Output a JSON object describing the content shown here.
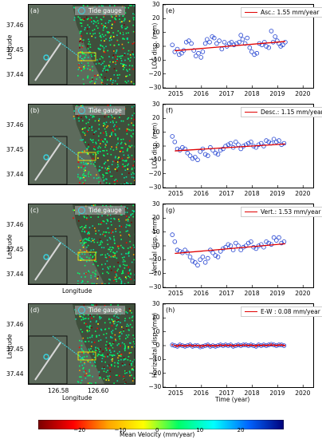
{
  "maps": {
    "panels": [
      {
        "letter": "(a)",
        "legend": "Tide gauge"
      },
      {
        "letter": "(b)",
        "legend": "Tide gauge"
      },
      {
        "letter": "(c)",
        "legend": "Tide gauge"
      },
      {
        "letter": "(d)",
        "legend": "Tide gauge"
      }
    ],
    "lat_ticks": [
      "37.46",
      "37.45",
      "37.44"
    ],
    "lon_ticks": [
      "126.58",
      "126.60"
    ],
    "ylabel": "Latitude",
    "xlabel": "Longitude"
  },
  "colorbar": {
    "label": "Mean Velocity (mm/year)",
    "ticks": [
      "−20",
      "−10",
      "0",
      "10",
      "20"
    ],
    "range": [
      -30,
      30
    ],
    "colors": [
      "#7a0000",
      "#ff0000",
      "#ffa500",
      "#ffff00",
      "#00ff66",
      "#00ffff",
      "#0064ff",
      "#00007a"
    ]
  },
  "chart_data": [
    {
      "type": "scatter",
      "panel": "(e)",
      "ylabel": "LOS disp. (mm)",
      "legend": "Asc.: 1.55 mm/year",
      "trend": {
        "x": [
          2014.95,
          2019.3
        ],
        "y": [
          -3.2,
          3.5
        ]
      },
      "x": [
        2014.85,
        2014.95,
        2015.05,
        2015.12,
        2015.22,
        2015.3,
        2015.4,
        2015.5,
        2015.6,
        2015.7,
        2015.78,
        2015.88,
        2015.98,
        2016.05,
        2016.15,
        2016.22,
        2016.32,
        2016.42,
        2016.5,
        2016.6,
        2016.7,
        2016.8,
        2016.9,
        2017.0,
        2017.1,
        2017.18,
        2017.28,
        2017.38,
        2017.48,
        2017.55,
        2017.62,
        2017.72,
        2017.8,
        2017.9,
        2017.98,
        2018.08,
        2018.18,
        2018.28,
        2018.38,
        2018.48,
        2018.55,
        2018.65,
        2018.75,
        2018.82,
        2018.9,
        2018.98,
        2019.05,
        2019.12,
        2019.2,
        2019.3
      ],
      "y": [
        1,
        -4,
        -2,
        -6,
        -5,
        -3,
        3,
        4,
        2,
        -3,
        -7,
        -5,
        -8,
        -4,
        2,
        5,
        3,
        7,
        6,
        2,
        4,
        -2,
        3,
        0,
        2,
        3,
        1,
        2,
        3,
        8,
        5,
        2,
        6,
        -1,
        -4,
        -6,
        -5,
        2,
        1,
        3,
        0,
        -1,
        11,
        3,
        7,
        4,
        2,
        0,
        1,
        3
      ],
      "xlim": [
        2014.5,
        2020.4
      ],
      "ylim": [
        -30,
        30
      ],
      "xticks": [
        2015,
        2016,
        2017,
        2018,
        2019,
        2020
      ],
      "yticks": [
        30,
        20,
        10,
        0,
        -10,
        -20,
        -30
      ]
    },
    {
      "type": "scatter",
      "panel": "(f)",
      "ylabel": "LOS disp. (mm)",
      "legend": "Desc.: 1.15 mm/year",
      "trend": {
        "x": [
          2014.95,
          2019.3
        ],
        "y": [
          -3.5,
          1.5
        ]
      },
      "x": [
        2014.85,
        2014.95,
        2015.05,
        2015.15,
        2015.25,
        2015.35,
        2015.45,
        2015.55,
        2015.65,
        2015.75,
        2015.85,
        2015.95,
        2016.05,
        2016.15,
        2016.25,
        2016.35,
        2016.45,
        2016.55,
        2016.65,
        2016.75,
        2016.85,
        2016.95,
        2017.05,
        2017.15,
        2017.25,
        2017.35,
        2017.45,
        2017.55,
        2017.65,
        2017.75,
        2017.85,
        2017.95,
        2018.05,
        2018.15,
        2018.25,
        2018.35,
        2018.45,
        2018.55,
        2018.65,
        2018.75,
        2018.85,
        2018.95,
        2019.05,
        2019.15,
        2019.25
      ],
      "y": [
        7,
        3,
        -2,
        -3,
        -1,
        -2,
        -5,
        -7,
        -9,
        -8,
        -10,
        -4,
        -2,
        -6,
        -7,
        -1,
        -3,
        -5,
        -6,
        -3,
        -2,
        0,
        1,
        2,
        -1,
        3,
        1,
        -2,
        0,
        1,
        2,
        3,
        0,
        -1,
        1,
        2,
        0,
        4,
        3,
        2,
        5,
        3,
        4,
        1,
        2
      ],
      "xlim": [
        2014.5,
        2020.4
      ],
      "ylim": [
        -30,
        30
      ],
      "xticks": [
        2015,
        2016,
        2017,
        2018,
        2019,
        2020
      ],
      "yticks": [
        30,
        20,
        10,
        0,
        -10,
        -20,
        -30
      ]
    },
    {
      "type": "scatter",
      "panel": "(g)",
      "ylabel": "Vertical disp. (mm)",
      "legend": "Vert.: 1.53 mm/year",
      "trend": {
        "x": [
          2014.95,
          2019.3
        ],
        "y": [
          -5.5,
          1.5
        ]
      },
      "x": [
        2014.85,
        2014.95,
        2015.05,
        2015.15,
        2015.25,
        2015.35,
        2015.45,
        2015.55,
        2015.65,
        2015.75,
        2015.85,
        2015.95,
        2016.05,
        2016.15,
        2016.25,
        2016.35,
        2016.45,
        2016.55,
        2016.65,
        2016.75,
        2016.85,
        2016.95,
        2017.05,
        2017.15,
        2017.25,
        2017.35,
        2017.45,
        2017.55,
        2017.65,
        2017.75,
        2017.85,
        2017.95,
        2018.05,
        2018.15,
        2018.25,
        2018.35,
        2018.45,
        2018.55,
        2018.65,
        2018.75,
        2018.85,
        2018.95,
        2019.05,
        2019.15,
        2019.25
      ],
      "y": [
        8,
        3,
        -3,
        -4,
        -5,
        -3,
        -5,
        -8,
        -11,
        -12,
        -14,
        -10,
        -8,
        -12,
        -9,
        -3,
        -5,
        -7,
        -8,
        -4,
        -2,
        -1,
        1,
        0,
        -3,
        2,
        0,
        -3,
        -1,
        0,
        2,
        3,
        -1,
        -2,
        0,
        1,
        -1,
        3,
        2,
        1,
        6,
        4,
        6,
        2,
        3
      ],
      "xlim": [
        2014.5,
        2020.4
      ],
      "ylim": [
        -30,
        30
      ],
      "xticks": [
        2015,
        2016,
        2017,
        2018,
        2019,
        2020
      ],
      "yticks": [
        30,
        20,
        10,
        0,
        -10,
        -20,
        -30
      ]
    },
    {
      "type": "scatter",
      "panel": "(h)",
      "ylabel": "Horizontal disp. (mm)",
      "xlabel": "Time (year)",
      "legend": "E-W  : 0.08 mm/year",
      "trend": {
        "x": [
          2014.95,
          2019.3
        ],
        "y": [
          0,
          0.3
        ]
      },
      "x": [
        2014.85,
        2014.95,
        2015.05,
        2015.15,
        2015.25,
        2015.35,
        2015.45,
        2015.55,
        2015.65,
        2015.75,
        2015.85,
        2015.95,
        2016.05,
        2016.15,
        2016.25,
        2016.35,
        2016.45,
        2016.55,
        2016.65,
        2016.75,
        2016.85,
        2016.95,
        2017.05,
        2017.15,
        2017.25,
        2017.35,
        2017.45,
        2017.55,
        2017.65,
        2017.75,
        2017.85,
        2017.95,
        2018.05,
        2018.15,
        2018.25,
        2018.35,
        2018.45,
        2018.55,
        2018.65,
        2018.75,
        2018.85,
        2018.95,
        2019.05,
        2019.15,
        2019.25
      ],
      "y": [
        0.5,
        0,
        -0.5,
        0.5,
        0,
        -0.5,
        0,
        0.5,
        -0.5,
        0,
        0,
        -1,
        -0.5,
        0,
        0.5,
        -0.5,
        0,
        -0.5,
        0,
        0.5,
        0,
        0.5,
        0,
        0.5,
        -0.5,
        0,
        0.5,
        0,
        0.5,
        0.5,
        0,
        0.5,
        0,
        -0.5,
        0.5,
        0,
        0.5,
        0,
        0.5,
        1,
        0.5,
        0,
        0.5,
        0.5,
        0
      ],
      "xlim": [
        2014.5,
        2020.4
      ],
      "ylim": [
        -30,
        30
      ],
      "xticks": [
        2015,
        2016,
        2017,
        2018,
        2019,
        2020
      ],
      "yticks": [
        30,
        20,
        10,
        0,
        -10,
        -20,
        -30
      ]
    }
  ]
}
